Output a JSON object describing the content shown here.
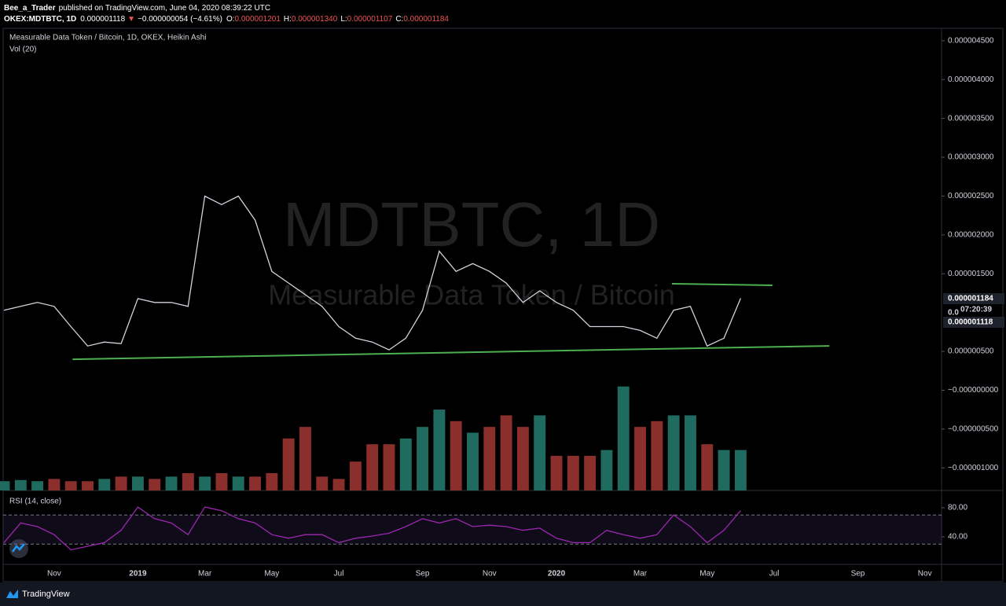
{
  "header": {
    "author": "Bee_a_Trader",
    "published": "published on TradingView.com, June 04, 2020 08:39:22 UTC",
    "symbol": "OKEX:MDTBTC, 1D",
    "last": "0.000001118",
    "arrow": "▼",
    "change": "−0.000000054 (−4.61%)",
    "ohlc": [
      [
        "O:",
        "0.000001201"
      ],
      [
        "H:",
        "0.000001340"
      ],
      [
        "L:",
        "0.000001107"
      ],
      [
        "C:",
        "0.000001184"
      ]
    ]
  },
  "chart_data": [
    {
      "type": "line",
      "title": "Measurable Data Token / Bitcoin, 1D, OKEX, Heikin Ashi",
      "watermark": [
        "MDTBTC, 1D",
        "Measurable Data Token / Bitcoin"
      ],
      "color": "#d1d4dc",
      "values": [
        1.03e-06,
        1.08e-06,
        1.13e-06,
        1.08e-06,
        8.2e-07,
        5.7e-07,
        6.2e-07,
        6e-07,
        1.18e-06,
        1.13e-06,
        1.13e-06,
        1.08e-06,
        2.5e-06,
        2.39e-06,
        2.5e-06,
        2.19e-06,
        1.53e-06,
        1.38e-06,
        1.23e-06,
        1.08e-06,
        8.2e-07,
        6.7e-07,
        6.2e-07,
        5.2e-07,
        6.7e-07,
        1.03e-06,
        1.79e-06,
        1.53e-06,
        1.63e-06,
        1.53e-06,
        1.38e-06,
        1.13e-06,
        1.28e-06,
        1.13e-06,
        1.03e-06,
        8.2e-07,
        8.2e-07,
        8.2e-07,
        7.7e-07,
        6.7e-07,
        1.03e-06,
        1.08e-06,
        5.7e-07,
        6.7e-07,
        1.184e-06,
        null,
        null,
        null,
        null,
        null,
        null,
        null,
        null,
        null,
        null,
        null,
        null
      ],
      "ylim": [
        -1.27e-06,
        4.66e-06
      ],
      "yticks": [
        {
          "value": 4.5e-06,
          "label": "0.000004500"
        },
        {
          "value": 4e-06,
          "label": "0.000004000"
        },
        {
          "value": 3.5e-06,
          "label": "0.000003500"
        },
        {
          "value": 3e-06,
          "label": "0.000003000"
        },
        {
          "value": 2.5e-06,
          "label": "0.000002500"
        },
        {
          "value": 2e-06,
          "label": "0.000002000"
        },
        {
          "value": 1.5e-06,
          "label": "0.000001500"
        },
        {
          "value": 5e-07,
          "label": "0.000000500"
        },
        {
          "value": 0,
          "label": "−0.000000000"
        },
        {
          "value": -5e-07,
          "label": "−0.000000500"
        },
        {
          "value": -1e-06,
          "label": "−0.000001000"
        }
      ],
      "last_price_labels": [
        "0.000001184",
        "07:20:39",
        "0.0",
        "0.000001118"
      ],
      "trendlines": [
        {
          "color": "#4caf50",
          "x": [
            4.1,
            49.3
          ],
          "y": [
            3.99e-07,
            5.71e-07
          ]
        },
        {
          "color": "#4caf50",
          "x": [
            39.9,
            45.9
          ],
          "y": [
            1.371e-06,
            1.351e-06
          ]
        }
      ]
    },
    {
      "type": "bar",
      "title": "Vol (20)",
      "up_color": "#1f6b5f",
      "down_color": "#8a2f2c",
      "values": [
        8,
        9,
        8,
        10,
        8,
        8,
        10,
        12,
        12,
        10,
        12,
        15,
        12,
        15,
        12,
        12,
        15,
        45,
        55,
        12,
        10,
        25,
        40,
        40,
        45,
        55,
        70,
        60,
        50,
        55,
        65,
        55,
        65,
        30,
        30,
        30,
        35,
        90,
        55,
        60,
        65,
        65,
        40,
        35,
        35,
        null,
        null,
        null,
        null,
        null,
        null,
        null,
        null,
        null,
        null,
        null,
        null
      ],
      "ylim": [
        0,
        100
      ]
    },
    {
      "type": "line",
      "title": "RSI (14, close)",
      "color": "#9c27b0",
      "band": [
        30,
        70
      ],
      "categories": [
        null,
        null,
        null,
        "Nov",
        null,
        null,
        null,
        null,
        "2019",
        null,
        null,
        null,
        "Mar",
        null,
        null,
        null,
        "May",
        null,
        null,
        null,
        "Jul",
        null,
        null,
        null,
        null,
        "Sep",
        null,
        null,
        null,
        "Nov",
        null,
        null,
        null,
        "2020",
        null,
        null,
        null,
        null,
        "Mar",
        null,
        null,
        null,
        "May",
        null,
        null,
        null,
        "Jul",
        null,
        null,
        null,
        null,
        "Sep",
        null,
        null,
        null,
        "Nov",
        null
      ],
      "values": [
        32,
        59,
        54,
        43,
        22,
        27,
        32,
        49,
        81,
        65,
        59,
        43,
        81,
        76,
        65,
        59,
        43,
        38,
        43,
        43,
        32,
        38,
        41,
        45,
        54,
        65,
        59,
        65,
        54,
        56,
        54,
        49,
        52,
        38,
        32,
        32,
        49,
        43,
        38,
        43,
        70,
        54,
        32,
        49,
        76,
        null,
        null,
        null,
        null,
        null,
        null,
        null,
        null,
        null,
        null,
        null,
        null
      ],
      "ylim": [
        3.2,
        102.7
      ],
      "yticks": [
        {
          "value": 80,
          "label": "80.00"
        },
        {
          "value": 40,
          "label": "40.00"
        }
      ]
    }
  ],
  "footer": {
    "brand": "TradingView"
  }
}
